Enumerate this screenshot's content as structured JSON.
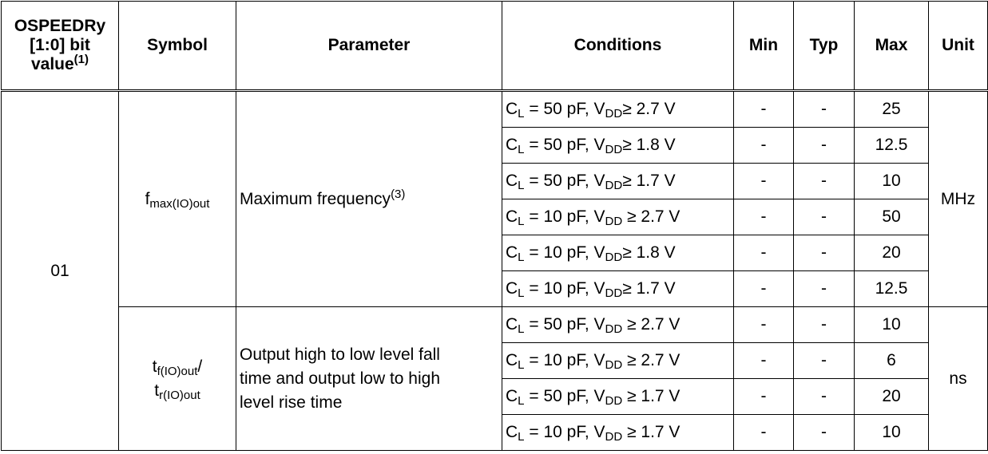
{
  "headers": {
    "ospeed_line1": "OSPEEDRy",
    "ospeed_line2": "[1:0] bit",
    "ospeed_line3": "value",
    "ospeed_note": "(1)",
    "symbol": "Symbol",
    "parameter": "Parameter",
    "conditions": "Conditions",
    "min": "Min",
    "typ": "Typ",
    "max": "Max",
    "unit": "Unit"
  },
  "group": {
    "ospeed_value": "01"
  },
  "freq": {
    "symbol_main": "f",
    "symbol_sub": "max(IO)out",
    "parameter": "Maximum frequency",
    "parameter_note": "(3)",
    "unit": "MHz",
    "rows": [
      {
        "cl": "50",
        "op": "≥",
        "vdd": "2.7 V",
        "min": "-",
        "typ": "-",
        "max": "25"
      },
      {
        "cl": "50",
        "op": "≥",
        "vdd": "1.8 V",
        "min": "-",
        "typ": "-",
        "max": "12.5"
      },
      {
        "cl": "50",
        "op": "≥",
        "vdd": "1.7 V",
        "min": "-",
        "typ": "-",
        "max": "10"
      },
      {
        "cl": "10",
        "op": " ≥",
        "vdd": "2.7 V",
        "min": "-",
        "typ": "-",
        "max": "50"
      },
      {
        "cl": "10",
        "op": "≥",
        "vdd": "1.8 V",
        "min": "-",
        "typ": "-",
        "max": "20"
      },
      {
        "cl": "10",
        "op": "≥",
        "vdd": "1.7 V",
        "min": "-",
        "typ": "-",
        "max": "12.5"
      }
    ]
  },
  "rise": {
    "symbol1_main": "t",
    "symbol1_sub": "f(IO)out",
    "symbol_slash": "/",
    "symbol2_main": "t",
    "symbol2_sub": "r(IO)out",
    "param_line1": "Output high to low level fall",
    "param_line2": "time and output low to high",
    "param_line3": "level rise time",
    "unit": "ns",
    "rows": [
      {
        "cl": "50",
        "op": " ≥",
        "vdd": "2.7 V",
        "min": "-",
        "typ": "-",
        "max": "10"
      },
      {
        "cl": "10",
        "op": " ≥",
        "vdd": "2.7 V",
        "min": "-",
        "typ": "-",
        "max": "6"
      },
      {
        "cl": "50",
        "op": " ≥",
        "vdd": "1.7 V",
        "min": "-",
        "typ": "-",
        "max": "20"
      },
      {
        "cl": "10",
        "op": " ≥",
        "vdd": "1.7 V",
        "min": "-",
        "typ": "-",
        "max": "10"
      }
    ]
  },
  "labels": {
    "cond_c": "C",
    "cond_c_sub": "L",
    "cond_eq": " = ",
    "cond_pf": " pF, V",
    "cond_vdd_sub": "DD"
  }
}
